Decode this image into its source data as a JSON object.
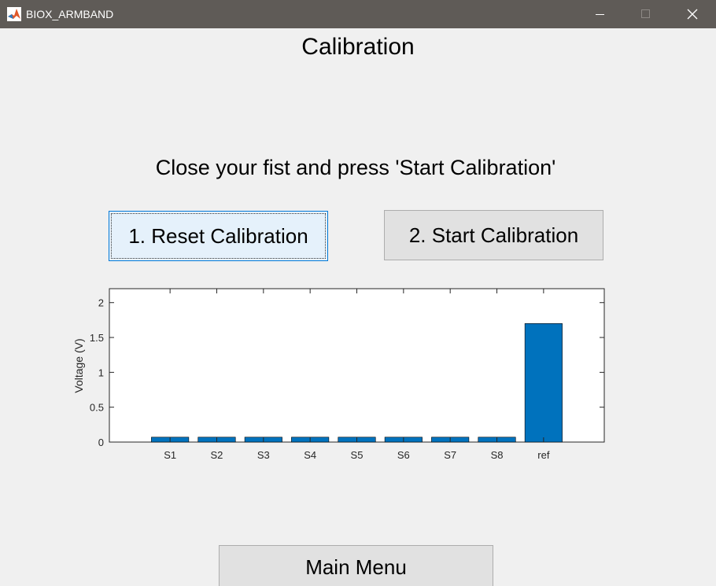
{
  "window": {
    "title": "BIOX_ARMBAND",
    "icon": "matlab-icon",
    "controls": {
      "minimize": "minimize-icon",
      "maximize": "maximize-icon",
      "close": "close-icon"
    }
  },
  "page": {
    "title": "Calibration",
    "instruction": "Close your fist and press 'Start Calibration'"
  },
  "buttons": {
    "reset_label": "1. Reset Calibration",
    "start_label": "2. Start Calibration",
    "menu_label": "Main Menu"
  },
  "colors": {
    "bar": "#0072bd",
    "focused_button_bg": "#e5f1fb",
    "focused_button_border": "#0078d7"
  },
  "chart_data": {
    "type": "bar",
    "categories": [
      "S1",
      "S2",
      "S3",
      "S4",
      "S5",
      "S6",
      "S7",
      "S8",
      "ref"
    ],
    "values": [
      0.07,
      0.07,
      0.07,
      0.07,
      0.07,
      0.07,
      0.07,
      0.07,
      1.7
    ],
    "ylabel": "Voltage (V)",
    "ylim": [
      0,
      2.2
    ],
    "yticks": [
      0,
      0.5,
      1,
      1.5,
      2
    ],
    "ytick_labels": [
      "0",
      "0.5",
      "1",
      "1.5",
      "2"
    ],
    "grid": false,
    "legend": "none"
  }
}
